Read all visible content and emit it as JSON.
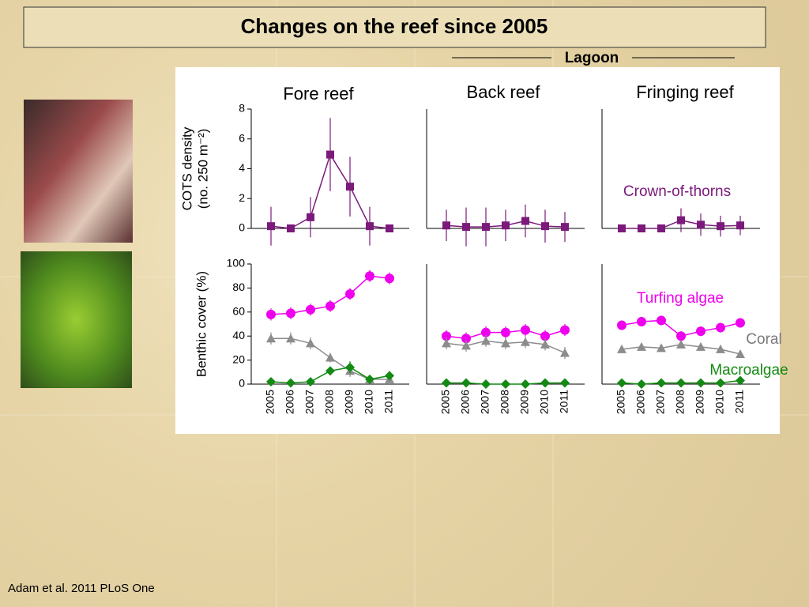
{
  "title": "Changes on the reef since 2005",
  "lagoon_label": "Lagoon",
  "citation": "Adam et al. 2011  PLoS One",
  "chart_data": [
    {
      "type": "line",
      "title": "Fore reef",
      "ylabel": [
        "COTS density",
        "(no. 250 m⁻²)"
      ],
      "categories": [
        null,
        null,
        null,
        null,
        null,
        null,
        null
      ],
      "ylim": [
        0,
        8
      ],
      "yticks": [
        0,
        2,
        4,
        6,
        8
      ],
      "series": [
        {
          "color": "#7b1a7b",
          "marker": "square",
          "values": [
            0.15,
            0,
            0.75,
            4.95,
            2.8,
            0.15,
            0
          ],
          "errors": [
            1.3,
            0,
            1.35,
            2.45,
            2.0,
            1.3,
            0
          ]
        }
      ]
    },
    {
      "type": "line",
      "title": "Back reef",
      "categories": [
        null,
        null,
        null,
        null,
        null,
        null,
        null
      ],
      "ylim": [
        0,
        8
      ],
      "series": [
        {
          "color": "#7b1a7b",
          "marker": "square",
          "values": [
            0.2,
            0.1,
            0.1,
            0.2,
            0.5,
            0.15,
            0.1
          ],
          "errors": [
            1.05,
            1.3,
            1.3,
            1.05,
            1.1,
            1.1,
            1.0
          ]
        }
      ]
    },
    {
      "type": "line",
      "title": "Fringing reef",
      "categories": [
        null,
        null,
        null,
        null,
        null,
        null,
        null
      ],
      "ylim": [
        0,
        8
      ],
      "annotations": [
        {
          "text": "Crown-of-thorns",
          "color": "#7b1a7b"
        }
      ],
      "series": [
        {
          "color": "#7b1a7b",
          "marker": "square",
          "values": [
            0,
            0,
            0,
            0.55,
            0.25,
            0.15,
            0.2
          ],
          "errors": [
            0,
            0,
            0,
            0.8,
            0.75,
            0.7,
            0.65
          ]
        }
      ]
    },
    {
      "type": "line",
      "ylabel": "Benthic cover (%)",
      "categories": [
        "2005",
        "2006",
        "2007",
        "2008",
        "2009",
        "2010",
        "2011"
      ],
      "ylim": [
        0,
        100
      ],
      "yticks": [
        0,
        20,
        40,
        60,
        80,
        100
      ],
      "series": [
        {
          "color": "#ee00ee",
          "marker": "circle",
          "values": [
            58,
            59,
            62,
            65,
            75,
            90,
            88
          ],
          "errors": [
            5,
            5,
            5,
            5,
            5,
            5,
            5
          ]
        },
        {
          "color": "#8c8c8c",
          "marker": "triangle",
          "values": [
            38,
            38,
            34,
            22,
            11,
            4,
            4
          ],
          "errors": [
            5,
            5,
            5,
            4,
            5,
            3,
            2
          ]
        },
        {
          "color": "#138a13",
          "marker": "diamond",
          "values": [
            2,
            1,
            2,
            11,
            14,
            4,
            7
          ],
          "errors": [
            1,
            1,
            1,
            3,
            5,
            2,
            4
          ]
        }
      ]
    },
    {
      "type": "line",
      "categories": [
        "2005",
        "2006",
        "2007",
        "2008",
        "2009",
        "2010",
        "2011"
      ],
      "ylim": [
        0,
        100
      ],
      "series": [
        {
          "color": "#ee00ee",
          "marker": "circle",
          "values": [
            40,
            38,
            43,
            43,
            45,
            40,
            45
          ],
          "errors": [
            5,
            5,
            5,
            5,
            5,
            5,
            5
          ]
        },
        {
          "color": "#8c8c8c",
          "marker": "triangle",
          "values": [
            34,
            32,
            36,
            34,
            35,
            33,
            26
          ],
          "errors": [
            5,
            5,
            5,
            5,
            5,
            5,
            5
          ]
        },
        {
          "color": "#138a13",
          "marker": "diamond",
          "values": [
            1,
            1,
            0,
            0,
            0,
            1,
            1
          ],
          "errors": [
            1,
            1,
            1,
            1,
            1,
            1,
            1
          ]
        }
      ]
    },
    {
      "type": "line",
      "categories": [
        "2005",
        "2006",
        "2007",
        "2008",
        "2009",
        "2010",
        "2011"
      ],
      "ylim": [
        0,
        100
      ],
      "annotations": [
        {
          "text": "Turfing algae",
          "color": "#ee00ee"
        },
        {
          "text": "Coral",
          "color": "#7a7a7a"
        },
        {
          "text": "Macroalgae",
          "color": "#138a13"
        }
      ],
      "series": [
        {
          "color": "#ee00ee",
          "marker": "circle",
          "values": [
            49,
            52,
            53,
            40,
            44,
            47,
            51
          ],
          "errors": [
            4,
            4,
            4,
            4,
            4,
            4,
            4
          ]
        },
        {
          "color": "#8c8c8c",
          "marker": "triangle",
          "values": [
            29,
            31,
            30,
            33,
            31,
            29,
            25
          ],
          "errors": [
            3,
            3,
            3,
            3,
            3,
            3,
            3
          ]
        },
        {
          "color": "#138a13",
          "marker": "diamond",
          "values": [
            1,
            0,
            1,
            1,
            1,
            1,
            3
          ],
          "errors": [
            1,
            1,
            1,
            1,
            1,
            1,
            1
          ]
        }
      ]
    }
  ]
}
